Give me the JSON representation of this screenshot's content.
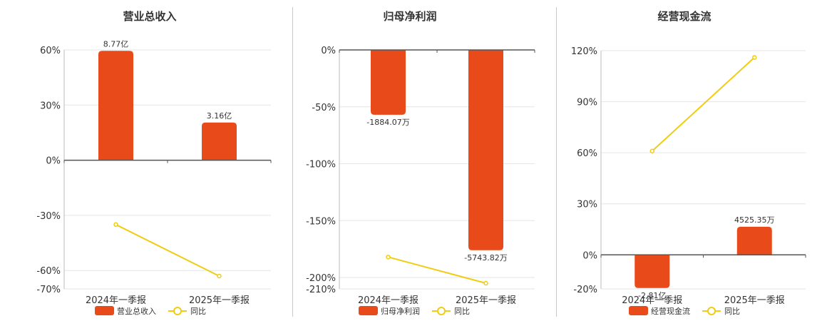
{
  "colors": {
    "bar": "#e84a1a",
    "line": "#f0cc12",
    "grid": "#e6e6e6",
    "axis": "#555555"
  },
  "chart_data": [
    {
      "type": "bar",
      "title": "营业总收入",
      "categories": [
        "2024年一季报",
        "2025年一季报"
      ],
      "series": [
        {
          "name": "营业总收入",
          "type": "bar",
          "values": [
            59.5,
            20.5
          ],
          "labels": [
            "8.77亿",
            "3.16亿"
          ]
        },
        {
          "name": "同比",
          "type": "line",
          "values": [
            -35,
            -63
          ]
        }
      ],
      "ylim": [
        -70,
        60
      ],
      "yticks": [
        60,
        30,
        0,
        -30,
        -60,
        -70
      ],
      "ytick_labels": [
        "60%",
        "30%",
        "0%",
        "-30%",
        "-60%",
        "-70%"
      ],
      "legend": [
        "营业总收入",
        "同比"
      ],
      "legend_position": "bottom"
    },
    {
      "type": "bar",
      "title": "归母净利润",
      "categories": [
        "2024年一季报",
        "2025年一季报"
      ],
      "series": [
        {
          "name": "归母净利润",
          "type": "bar",
          "values": [
            -57,
            -176
          ],
          "labels": [
            "-1884.07万",
            "-5743.82万"
          ]
        },
        {
          "name": "同比",
          "type": "line",
          "values": [
            -182,
            -205
          ]
        }
      ],
      "ylim": [
        -210,
        0
      ],
      "yticks": [
        0,
        -50,
        -100,
        -150,
        -200,
        -210
      ],
      "ytick_labels": [
        "0%",
        "-50%",
        "-100%",
        "-150%",
        "-200%",
        "-210%"
      ],
      "legend": [
        "归母净利润",
        "同比"
      ],
      "legend_position": "bottom"
    },
    {
      "type": "bar",
      "title": "经营现金流",
      "categories": [
        "2024年一季报",
        "2025年一季报"
      ],
      "series": [
        {
          "name": "经营现金流",
          "type": "bar",
          "values": [
            -19.5,
            16.5
          ],
          "labels": [
            "-2.81亿",
            "4525.35万"
          ]
        },
        {
          "name": "同比",
          "type": "line",
          "values": [
            61,
            116
          ]
        }
      ],
      "ylim": [
        -20,
        120
      ],
      "yticks": [
        120,
        90,
        60,
        30,
        0,
        -20
      ],
      "ytick_labels": [
        "120%",
        "90%",
        "60%",
        "30%",
        "0%",
        "-20%"
      ],
      "legend": [
        "经营现金流",
        "同比"
      ],
      "legend_position": "bottom"
    }
  ]
}
